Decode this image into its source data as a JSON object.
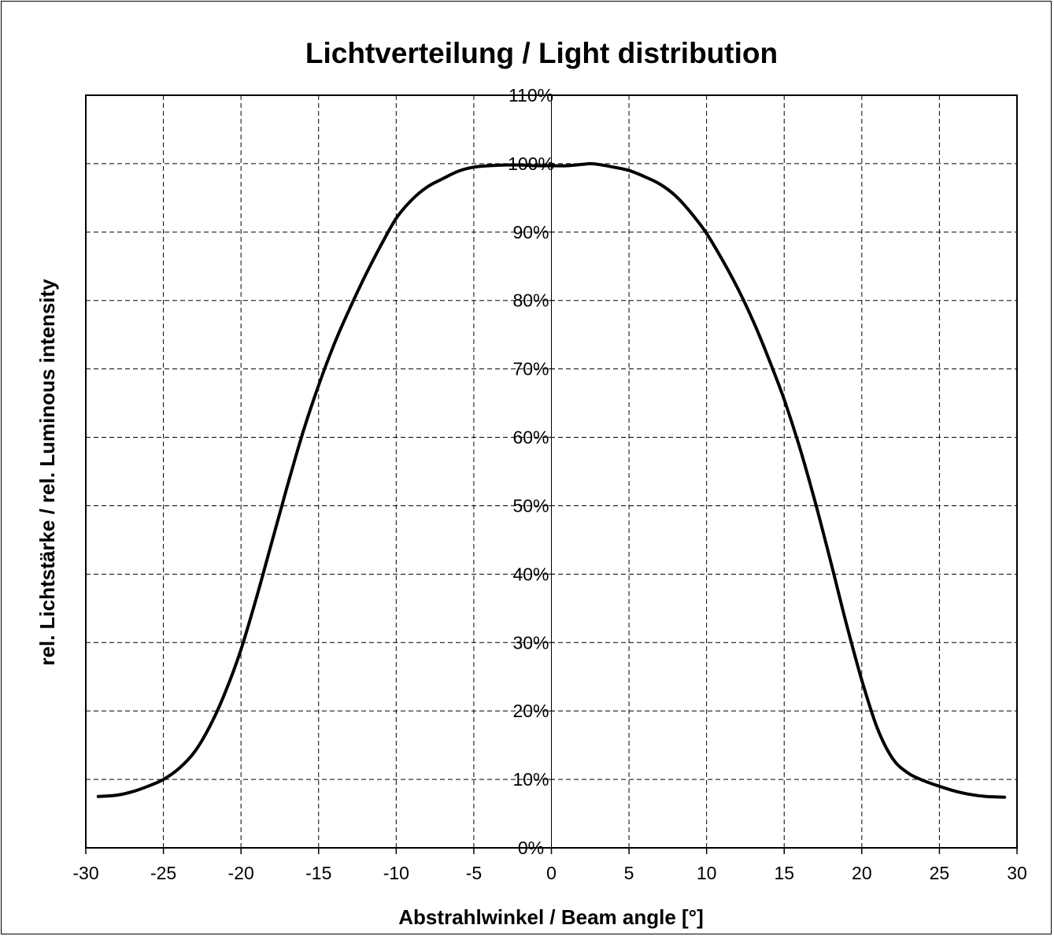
{
  "chart_data": {
    "type": "line",
    "title": "Lichtverteilung / Light distribution",
    "xlabel": "Abstrahlwinkel / Beam angle [°]",
    "ylabel": "rel. Lichtstärke / rel. Luminous intensity",
    "xlim": [
      -30,
      30
    ],
    "ylim": [
      0,
      110
    ],
    "x_ticks": [
      -30,
      -25,
      -20,
      -15,
      -10,
      -5,
      0,
      5,
      10,
      15,
      20,
      25,
      30
    ],
    "y_ticks": [
      0,
      10,
      20,
      30,
      40,
      50,
      60,
      70,
      80,
      90,
      100,
      110
    ],
    "y_tick_format": "%",
    "grid": true,
    "legend": "none",
    "colors": {
      "line": "#000000",
      "grid": "#000000",
      "frame": "#000000",
      "background": "#ffffff"
    },
    "series": [
      {
        "x": [
          -29.2,
          -28,
          -27,
          -26,
          -25,
          -24,
          -23,
          -22,
          -21,
          -20,
          -19,
          -18,
          -17,
          -16,
          -15,
          -14,
          -13,
          -12,
          -11,
          -10,
          -9,
          -8,
          -7,
          -6,
          -5,
          -4,
          -3,
          -2,
          -1,
          0,
          1,
          2,
          2.5,
          3,
          4,
          5,
          6,
          7,
          8,
          9,
          10,
          11,
          12,
          13,
          14,
          15,
          16,
          17,
          18,
          19,
          20,
          21,
          22,
          23,
          24,
          25,
          26,
          27,
          28,
          29.2
        ],
        "y": [
          7.5,
          7.7,
          8.2,
          9.0,
          10.0,
          11.6,
          14.0,
          17.8,
          22.8,
          29.0,
          36.6,
          44.8,
          53.0,
          60.8,
          67.6,
          73.6,
          78.8,
          83.6,
          88.0,
          92.0,
          94.7,
          96.6,
          97.8,
          98.9,
          99.5,
          99.7,
          99.8,
          99.8,
          99.7,
          99.7,
          99.7,
          99.9,
          100.0,
          99.9,
          99.5,
          99.0,
          98.1,
          97.0,
          95.3,
          92.8,
          89.8,
          86.0,
          81.8,
          77.0,
          71.5,
          65.5,
          58.5,
          50.5,
          41.8,
          32.8,
          24.5,
          17.5,
          13.0,
          10.9,
          9.8,
          9.0,
          8.3,
          7.8,
          7.5,
          7.4
        ]
      }
    ]
  }
}
